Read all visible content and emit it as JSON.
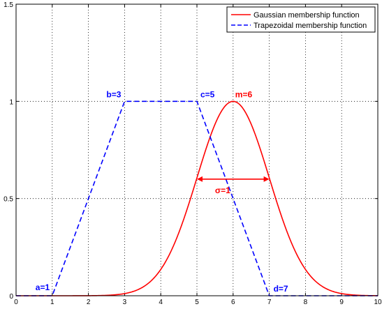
{
  "chart_data": {
    "type": "line",
    "title": "",
    "xlabel": "",
    "ylabel": "",
    "xlim": [
      0,
      10
    ],
    "ylim": [
      0,
      1.5
    ],
    "x_ticks": [
      "0",
      "1",
      "2",
      "3",
      "4",
      "5",
      "6",
      "7",
      "8",
      "9",
      "10"
    ],
    "y_ticks": [
      "0",
      "0.5",
      "1",
      "1.5"
    ],
    "grid": true,
    "legend_position": "top-right",
    "series": [
      {
        "name": "Gaussian membership function",
        "color": "#ff0000",
        "style": "solid",
        "function": "gaussian",
        "mean": 6,
        "sigma": 1
      },
      {
        "name": "Trapezoidal membership function",
        "color": "#0000ff",
        "style": "dashed",
        "function": "trapezoid",
        "x": [
          0,
          1,
          3,
          5,
          7,
          10
        ],
        "y": [
          0,
          0,
          1,
          1,
          0,
          0
        ]
      }
    ],
    "annotations": [
      {
        "text": "a=1",
        "x": 1,
        "y": 0,
        "color": "#0000ff"
      },
      {
        "text": "b=3",
        "x": 3,
        "y": 1,
        "color": "#0000ff"
      },
      {
        "text": "c=5",
        "x": 5,
        "y": 1,
        "color": "#0000ff"
      },
      {
        "text": "d=7",
        "x": 7,
        "y": 0,
        "color": "#0000ff"
      },
      {
        "text": "m=6",
        "x": 6,
        "y": 1,
        "color": "#ff0000"
      },
      {
        "text": "σ=1",
        "x": 5.5,
        "y": 0.6,
        "color": "#ff0000"
      }
    ],
    "sigma_arrow": {
      "x_from": 5,
      "x_to": 7,
      "y": 0.6,
      "color": "#ff0000"
    }
  }
}
